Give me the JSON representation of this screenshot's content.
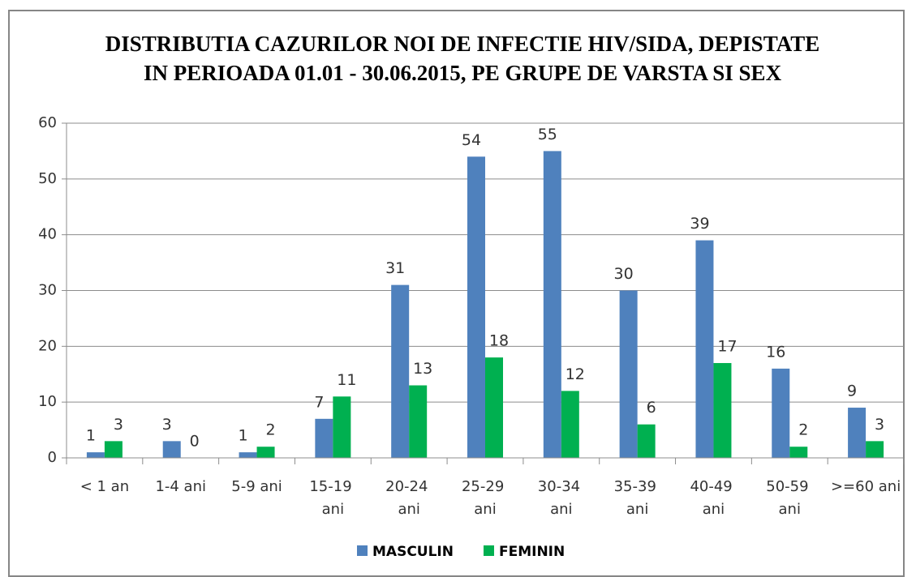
{
  "chart_data": {
    "type": "bar",
    "title": "DISTRIBUTIA CAZURILOR NOI DE INFECTIE HIV/SIDA, DEPISTATE IN PERIOADA 01.01 - 30.06.2015, PE GRUPE DE VARSTA SI SEX",
    "categories": [
      "< 1 an",
      "1-4 ani",
      "5-9 ani",
      "15-19 ani",
      "20-24 ani",
      "25-29 ani",
      "30-34 ani",
      "35-39 ani",
      "40-49 ani",
      "50-59 ani",
      ">=60 ani"
    ],
    "series": [
      {
        "name": "MASCULIN",
        "color": "#4f81bd",
        "values": [
          1,
          3,
          1,
          7,
          31,
          54,
          55,
          30,
          39,
          16,
          9
        ]
      },
      {
        "name": "FEMININ",
        "color": "#00b050",
        "values": [
          3,
          0,
          2,
          11,
          13,
          18,
          12,
          6,
          17,
          2,
          3
        ]
      }
    ],
    "ylim": [
      0,
      60
    ],
    "yticks": [
      0,
      10,
      20,
      30,
      40,
      50,
      60
    ],
    "grid": true,
    "legend": "bottom"
  }
}
